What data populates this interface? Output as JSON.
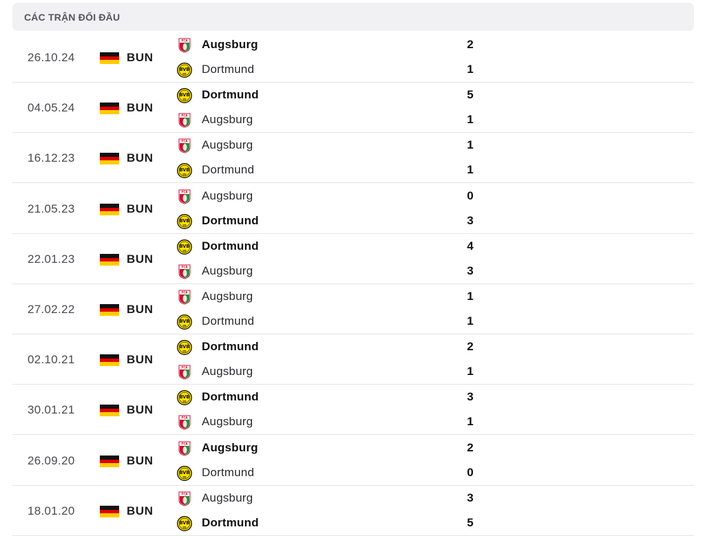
{
  "section": {
    "title": "CÁC TRẬN ĐỐI ĐẦU"
  },
  "teams": {
    "augsburg": {
      "name": "Augsburg",
      "icon": "augsburg-crest-icon"
    },
    "dortmund": {
      "name": "Dortmund",
      "icon": "dortmund-crest-icon"
    }
  },
  "colors": {
    "augsburg_red": "#c8102e",
    "augsburg_green": "#2e8b3a",
    "dortmund_yellow": "#fde100",
    "divider": "#e4e4e7"
  },
  "matches": [
    {
      "date": "26.10.24",
      "league": "BUN",
      "flag": "germany-flag-icon",
      "home": {
        "name": "Augsburg",
        "score": "2",
        "winner": true
      },
      "away": {
        "name": "Dortmund",
        "score": "1",
        "winner": false
      }
    },
    {
      "date": "04.05.24",
      "league": "BUN",
      "flag": "germany-flag-icon",
      "home": {
        "name": "Dortmund",
        "score": "5",
        "winner": true
      },
      "away": {
        "name": "Augsburg",
        "score": "1",
        "winner": false
      }
    },
    {
      "date": "16.12.23",
      "league": "BUN",
      "flag": "germany-flag-icon",
      "home": {
        "name": "Augsburg",
        "score": "1",
        "winner": false
      },
      "away": {
        "name": "Dortmund",
        "score": "1",
        "winner": false
      }
    },
    {
      "date": "21.05.23",
      "league": "BUN",
      "flag": "germany-flag-icon",
      "home": {
        "name": "Augsburg",
        "score": "0",
        "winner": false
      },
      "away": {
        "name": "Dortmund",
        "score": "3",
        "winner": true
      }
    },
    {
      "date": "22.01.23",
      "league": "BUN",
      "flag": "germany-flag-icon",
      "home": {
        "name": "Dortmund",
        "score": "4",
        "winner": true
      },
      "away": {
        "name": "Augsburg",
        "score": "3",
        "winner": false
      }
    },
    {
      "date": "27.02.22",
      "league": "BUN",
      "flag": "germany-flag-icon",
      "home": {
        "name": "Augsburg",
        "score": "1",
        "winner": false
      },
      "away": {
        "name": "Dortmund",
        "score": "1",
        "winner": false
      }
    },
    {
      "date": "02.10.21",
      "league": "BUN",
      "flag": "germany-flag-icon",
      "home": {
        "name": "Dortmund",
        "score": "2",
        "winner": true
      },
      "away": {
        "name": "Augsburg",
        "score": "1",
        "winner": false
      }
    },
    {
      "date": "30.01.21",
      "league": "BUN",
      "flag": "germany-flag-icon",
      "home": {
        "name": "Dortmund",
        "score": "3",
        "winner": true
      },
      "away": {
        "name": "Augsburg",
        "score": "1",
        "winner": false
      }
    },
    {
      "date": "26.09.20",
      "league": "BUN",
      "flag": "germany-flag-icon",
      "home": {
        "name": "Augsburg",
        "score": "2",
        "winner": true
      },
      "away": {
        "name": "Dortmund",
        "score": "0",
        "winner": false
      }
    },
    {
      "date": "18.01.20",
      "league": "BUN",
      "flag": "germany-flag-icon",
      "home": {
        "name": "Augsburg",
        "score": "3",
        "winner": false
      },
      "away": {
        "name": "Dortmund",
        "score": "5",
        "winner": true
      }
    }
  ]
}
